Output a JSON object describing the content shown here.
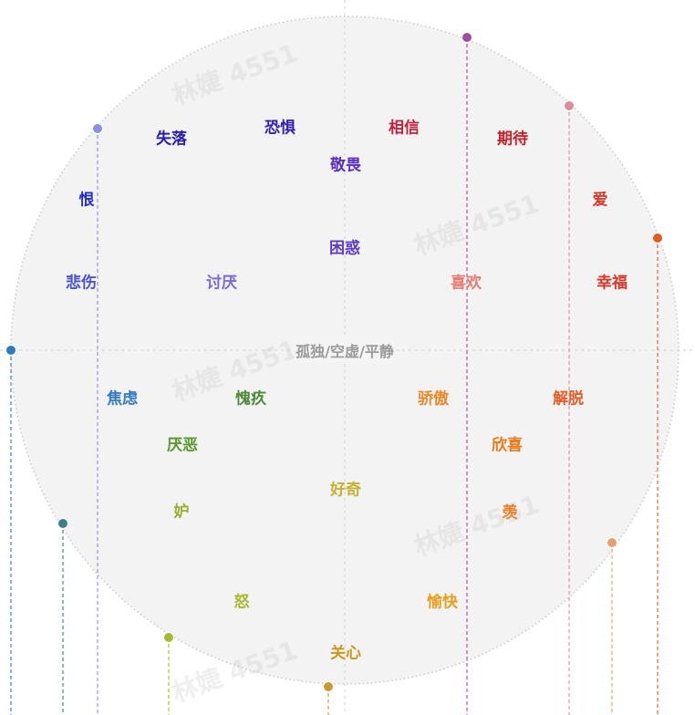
{
  "center_label": "孤独/空虚/平静",
  "watermark": "林婕 4551",
  "emotions": [
    {
      "id": "shiluo",
      "text": "失落",
      "color": "#2a1fa8"
    },
    {
      "id": "kongju",
      "text": "恐惧",
      "color": "#3a20b0"
    },
    {
      "id": "xiangxin",
      "text": "相信",
      "color": "#c0223e"
    },
    {
      "id": "qidai",
      "text": "期待",
      "color": "#c8242c"
    },
    {
      "id": "jingwei",
      "text": "敬畏",
      "color": "#5a2fc0"
    },
    {
      "id": "hen",
      "text": "恨",
      "color": "#2330c8"
    },
    {
      "id": "ai",
      "text": "爱",
      "color": "#d8332a"
    },
    {
      "id": "kunhuo",
      "text": "困惑",
      "color": "#5f3cc4"
    },
    {
      "id": "beishang",
      "text": "悲伤",
      "color": "#4a55cc"
    },
    {
      "id": "taoyan",
      "text": "讨厌",
      "color": "#7a6ad8"
    },
    {
      "id": "xihuan",
      "text": "喜欢",
      "color": "#e87a70"
    },
    {
      "id": "xingfu",
      "text": "幸福",
      "color": "#d03a2a"
    },
    {
      "id": "jiaolv",
      "text": "焦虑",
      "color": "#2f7ac4"
    },
    {
      "id": "kuijiu",
      "text": "愧疚",
      "color": "#4f8a3a"
    },
    {
      "id": "jiaoao",
      "text": "骄傲",
      "color": "#e8882a"
    },
    {
      "id": "jietuo",
      "text": "解脱",
      "color": "#e0602a"
    },
    {
      "id": "yanwu",
      "text": "厌恶",
      "color": "#5a9a30"
    },
    {
      "id": "xinxi",
      "text": "欣喜",
      "color": "#e87a1a"
    },
    {
      "id": "haoqi",
      "text": "好奇",
      "color": "#c8b030"
    },
    {
      "id": "du",
      "text": "妒",
      "color": "#9ab030"
    },
    {
      "id": "xian",
      "text": "羡",
      "color": "#e8802a"
    },
    {
      "id": "nu",
      "text": "怒",
      "color": "#a8b830"
    },
    {
      "id": "yukuai",
      "text": "愉快",
      "color": "#e8a020"
    },
    {
      "id": "guanxin",
      "text": "关心",
      "color": "#c89820"
    }
  ],
  "markers": [
    {
      "id": "purple-top",
      "color": "#a24c9e"
    },
    {
      "id": "blue-left-top",
      "color": "#8f8fe0"
    },
    {
      "id": "pink-right-top",
      "color": "#e08aa0"
    },
    {
      "id": "orange-right",
      "color": "#e55a24"
    },
    {
      "id": "blue-left",
      "color": "#2e7bc4"
    },
    {
      "id": "teal-left",
      "color": "#3f7e86"
    },
    {
      "id": "peach-right",
      "color": "#e8a070"
    },
    {
      "id": "olive-bottom-left",
      "color": "#a8b830"
    },
    {
      "id": "gold-bottom",
      "color": "#c89a30"
    }
  ],
  "colors": {
    "circle_fill": "#f3f3f3",
    "circle_stroke": "#c8c8c8",
    "axis": "#d0d0d0"
  }
}
